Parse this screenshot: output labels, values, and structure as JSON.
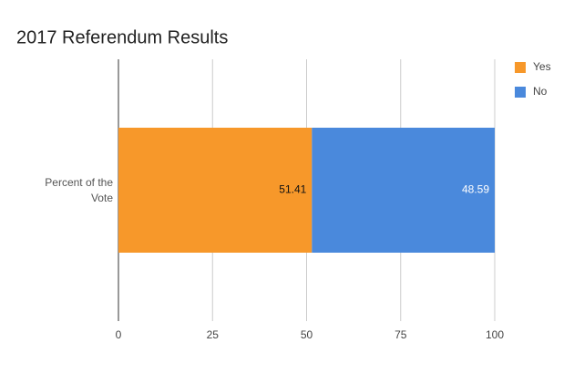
{
  "chart_data": {
    "type": "stacked_bar_horizontal",
    "title": "2017 Referendum Results",
    "categories": [
      "Percent of the Vote"
    ],
    "series": [
      {
        "name": "Yes",
        "color": "#f7982a",
        "values": [
          51.41
        ]
      },
      {
        "name": "No",
        "color": "#4a89dc",
        "values": [
          48.59
        ]
      }
    ],
    "xlim": [
      0,
      100
    ],
    "xticks": [
      0,
      25,
      50,
      75,
      100
    ],
    "grid": true,
    "legend": "right"
  }
}
